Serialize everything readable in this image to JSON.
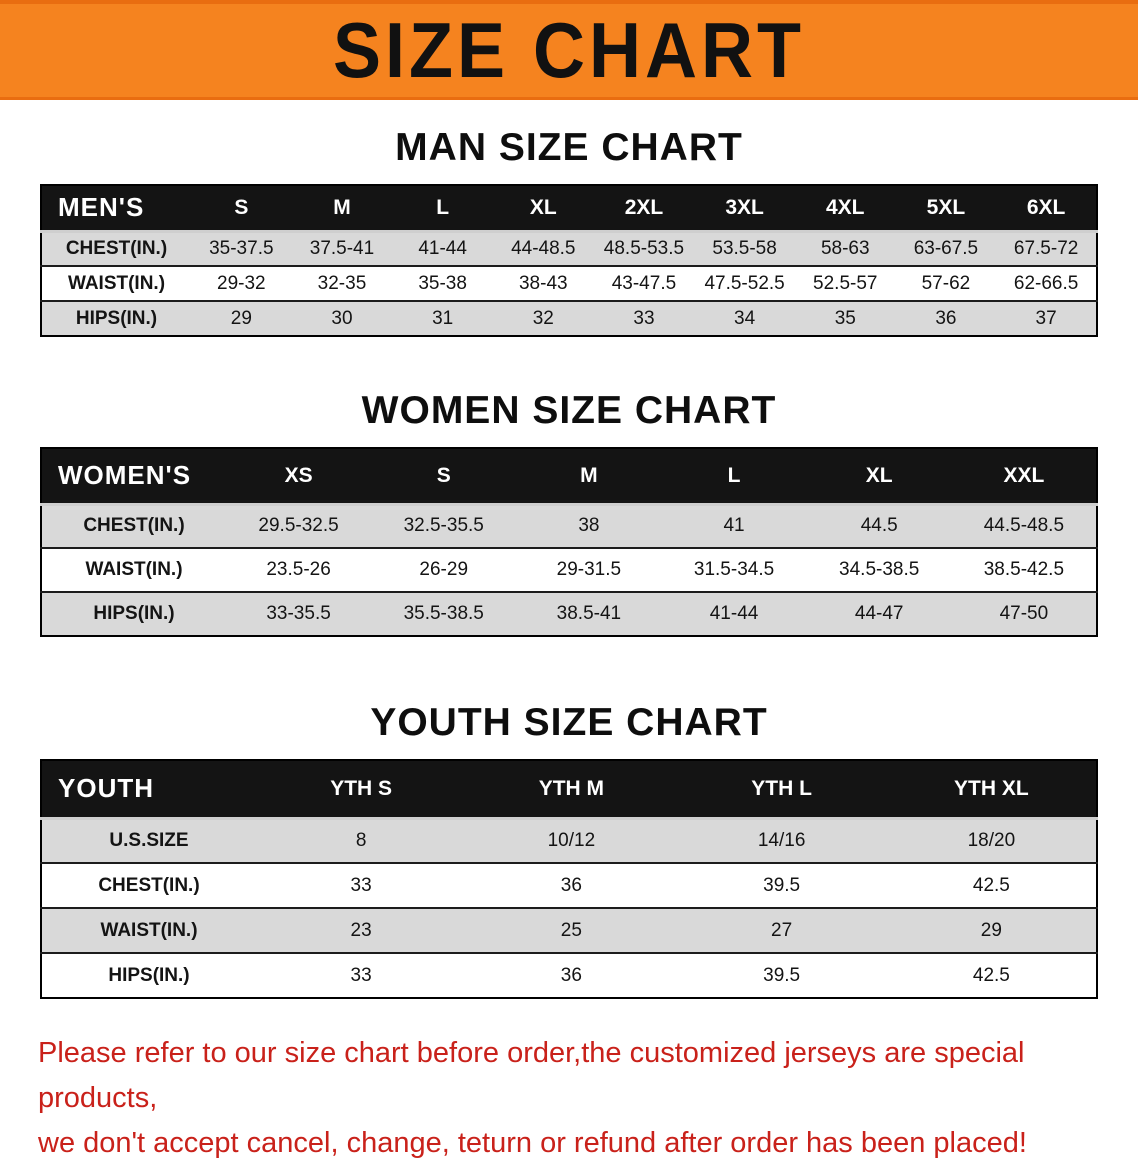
{
  "banner": {
    "title": "SIZE CHART"
  },
  "colors": {
    "banner_bg": "#f5831f",
    "table_header_bg": "#141414",
    "row_stripe": "#d9d9d9",
    "footer_text": "#c9211a"
  },
  "men": {
    "heading": "MAN SIZE CHART",
    "table": {
      "header": [
        "MEN'S",
        "S",
        "M",
        "L",
        "XL",
        "2XL",
        "3XL",
        "4XL",
        "5XL",
        "6XL"
      ],
      "rows": [
        [
          "CHEST(IN.)",
          "35-37.5",
          "37.5-41",
          "41-44",
          "44-48.5",
          "48.5-53.5",
          "53.5-58",
          "58-63",
          "63-67.5",
          "67.5-72"
        ],
        [
          "WAIST(IN.)",
          "29-32",
          "32-35",
          "35-38",
          "38-43",
          "43-47.5",
          "47.5-52.5",
          "52.5-57",
          "57-62",
          "62-66.5"
        ],
        [
          "HIPS(IN.)",
          "29",
          "30",
          "31",
          "32",
          "33",
          "34",
          "35",
          "36",
          "37"
        ]
      ]
    }
  },
  "women": {
    "heading": "WOMEN SIZE CHART",
    "table": {
      "header": [
        "WOMEN'S",
        "XS",
        "S",
        "M",
        "L",
        "XL",
        "XXL"
      ],
      "rows": [
        [
          "CHEST(IN.)",
          "29.5-32.5",
          "32.5-35.5",
          "38",
          "41",
          "44.5",
          "44.5-48.5"
        ],
        [
          "WAIST(IN.)",
          "23.5-26",
          "26-29",
          "29-31.5",
          "31.5-34.5",
          "34.5-38.5",
          "38.5-42.5"
        ],
        [
          "HIPS(IN.)",
          "33-35.5",
          "35.5-38.5",
          "38.5-41",
          "41-44",
          "44-47",
          "47-50"
        ]
      ]
    }
  },
  "youth": {
    "heading": "YOUTH SIZE CHART",
    "table": {
      "header": [
        "YOUTH",
        "YTH S",
        "YTH M",
        "YTH L",
        "YTH XL"
      ],
      "rows": [
        [
          "U.S.SIZE",
          "8",
          "10/12",
          "14/16",
          "18/20"
        ],
        [
          "CHEST(IN.)",
          "33",
          "36",
          "39.5",
          "42.5"
        ],
        [
          "WAIST(IN.)",
          "23",
          "25",
          "27",
          "29"
        ],
        [
          "HIPS(IN.)",
          "33",
          "36",
          "39.5",
          "42.5"
        ]
      ]
    }
  },
  "footer": {
    "line1": "Please refer to our size chart before order,the customized jerseys are special products,",
    "line2": "we don't accept cancel, change, teturn or refund after order has been placed!"
  }
}
